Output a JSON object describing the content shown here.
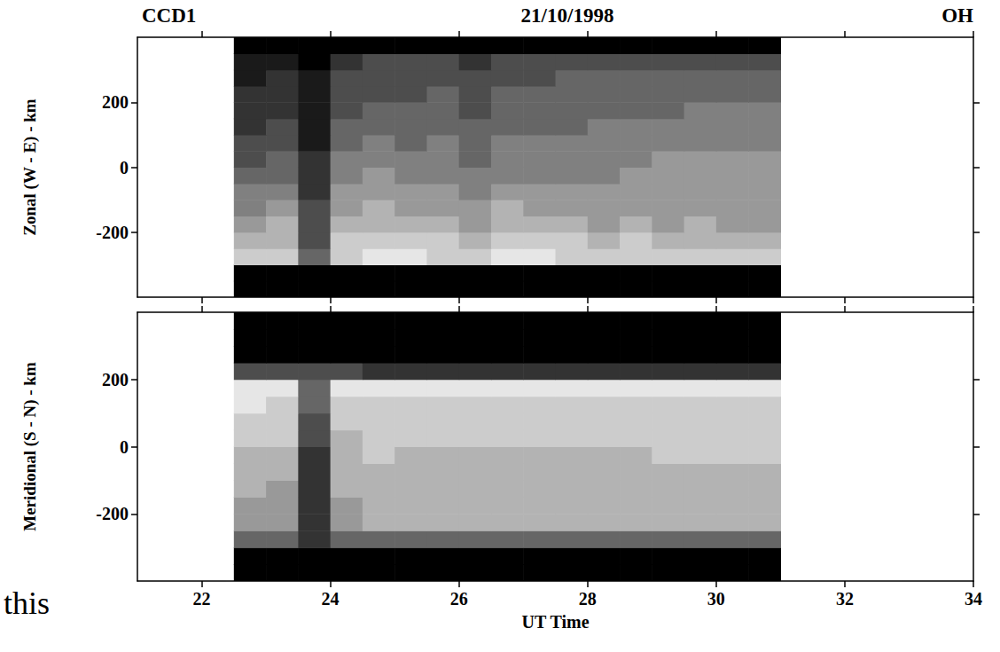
{
  "header": {
    "left": "CCD1",
    "center": "21/10/1998",
    "right": "OH"
  },
  "annotations": [
    "this"
  ],
  "chart_data": [
    {
      "type": "heatmap",
      "y_label": "Zonal (W - E) - km",
      "tick_labels": "y",
      "xlim": [
        21,
        34
      ],
      "xticks": [
        22,
        24,
        26,
        28,
        30,
        32,
        34
      ],
      "ylim": [
        -400,
        400
      ],
      "yticks": [
        -200,
        0,
        200
      ],
      "cell_range": [
        0,
        10
      ],
      "x": [
        22.75,
        23.25,
        23.75,
        24.25,
        24.75,
        25.25,
        25.75,
        26.25,
        26.75,
        27.25,
        27.75,
        28.25,
        28.75,
        29.25,
        29.75,
        30.25,
        30.75
      ],
      "y": [
        -375,
        -325,
        -275,
        -225,
        -175,
        -125,
        -75,
        -25,
        25,
        75,
        125,
        175,
        225,
        275,
        325,
        375
      ],
      "cells": [
        [
          0,
          0,
          0,
          0,
          0,
          0,
          0,
          0,
          0,
          0,
          0,
          0,
          0,
          0,
          0,
          0,
          0
        ],
        [
          0,
          0,
          0,
          0,
          0,
          0,
          0,
          0,
          0,
          0,
          0,
          0,
          0,
          0,
          0,
          0,
          0
        ],
        [
          8,
          8,
          4,
          8,
          9,
          9,
          8,
          8,
          9,
          9,
          8,
          8,
          8,
          8,
          8,
          8,
          8
        ],
        [
          7,
          7,
          3,
          8,
          8,
          8,
          8,
          7,
          8,
          8,
          8,
          7,
          8,
          7,
          7,
          7,
          7
        ],
        [
          6,
          7,
          3,
          7,
          7,
          7,
          7,
          6,
          7,
          7,
          7,
          6,
          7,
          6,
          7,
          6,
          6
        ],
        [
          5,
          6,
          3,
          6,
          7,
          6,
          6,
          6,
          7,
          6,
          6,
          6,
          6,
          6,
          6,
          6,
          6
        ],
        [
          5,
          5,
          2,
          6,
          6,
          6,
          6,
          5,
          6,
          6,
          6,
          6,
          6,
          6,
          6,
          6,
          6
        ],
        [
          4,
          4,
          2,
          5,
          6,
          5,
          5,
          5,
          5,
          5,
          5,
          5,
          6,
          6,
          6,
          6,
          6
        ],
        [
          3,
          4,
          2,
          5,
          5,
          5,
          5,
          4,
          5,
          5,
          5,
          5,
          5,
          6,
          6,
          6,
          6
        ],
        [
          3,
          3,
          1,
          4,
          5,
          4,
          5,
          4,
          5,
          5,
          5,
          5,
          5,
          5,
          5,
          5,
          5
        ],
        [
          2,
          3,
          1,
          4,
          4,
          4,
          4,
          4,
          4,
          4,
          4,
          5,
          5,
          5,
          5,
          5,
          5
        ],
        [
          2,
          2,
          1,
          3,
          4,
          4,
          4,
          3,
          4,
          4,
          4,
          4,
          4,
          4,
          5,
          5,
          5
        ],
        [
          2,
          2,
          1,
          3,
          3,
          3,
          4,
          3,
          4,
          4,
          4,
          4,
          4,
          4,
          4,
          4,
          4
        ],
        [
          1,
          2,
          1,
          3,
          3,
          3,
          3,
          3,
          3,
          3,
          4,
          4,
          4,
          4,
          4,
          4,
          4
        ],
        [
          1,
          1,
          0,
          2,
          3,
          3,
          3,
          2,
          3,
          3,
          3,
          3,
          3,
          3,
          3,
          3,
          3
        ],
        [
          0,
          0,
          0,
          0,
          0,
          0,
          0,
          0,
          0,
          0,
          0,
          0,
          0,
          0,
          0,
          0,
          0
        ]
      ]
    },
    {
      "type": "heatmap",
      "y_label": "Meridional (S - N) - km",
      "x_label": "UT Time",
      "xlim": [
        21,
        34
      ],
      "xticks": [
        22,
        24,
        26,
        28,
        30,
        32,
        34
      ],
      "ylim": [
        -400,
        400
      ],
      "yticks": [
        -200,
        0,
        200
      ],
      "cell_range": [
        0,
        10
      ],
      "x": [
        22.75,
        23.25,
        23.75,
        24.25,
        24.75,
        25.25,
        25.75,
        26.25,
        26.75,
        27.25,
        27.75,
        28.25,
        28.75,
        29.25,
        29.75,
        30.25,
        30.75
      ],
      "y": [
        -375,
        -325,
        -275,
        -225,
        -175,
        -125,
        -75,
        -25,
        25,
        75,
        125,
        175,
        225,
        275,
        325,
        375
      ],
      "cells": [
        [
          0,
          0,
          0,
          0,
          0,
          0,
          0,
          0,
          0,
          0,
          0,
          0,
          0,
          0,
          0,
          0,
          0
        ],
        [
          0,
          0,
          0,
          0,
          0,
          0,
          0,
          0,
          0,
          0,
          0,
          0,
          0,
          0,
          0,
          0,
          0
        ],
        [
          4,
          4,
          2,
          4,
          4,
          4,
          4,
          4,
          4,
          4,
          4,
          4,
          4,
          4,
          4,
          4,
          4
        ],
        [
          6,
          6,
          2,
          6,
          7,
          7,
          7,
          7,
          7,
          7,
          7,
          7,
          7,
          7,
          7,
          7,
          7
        ],
        [
          6,
          6,
          2,
          6,
          7,
          7,
          7,
          7,
          7,
          7,
          7,
          7,
          7,
          7,
          7,
          7,
          7
        ],
        [
          7,
          6,
          2,
          7,
          7,
          7,
          7,
          7,
          7,
          7,
          7,
          7,
          7,
          7,
          7,
          7,
          7
        ],
        [
          7,
          7,
          2,
          7,
          7,
          7,
          7,
          7,
          7,
          7,
          7,
          7,
          7,
          7,
          7,
          7,
          7
        ],
        [
          7,
          7,
          2,
          7,
          8,
          7,
          7,
          7,
          7,
          7,
          7,
          7,
          7,
          8,
          8,
          8,
          8
        ],
        [
          8,
          8,
          3,
          7,
          8,
          8,
          8,
          8,
          8,
          8,
          8,
          8,
          8,
          8,
          8,
          8,
          8
        ],
        [
          8,
          8,
          3,
          8,
          8,
          8,
          8,
          8,
          8,
          8,
          8,
          8,
          8,
          8,
          8,
          8,
          8
        ],
        [
          9,
          8,
          4,
          8,
          8,
          8,
          8,
          8,
          8,
          8,
          8,
          8,
          8,
          8,
          8,
          8,
          8
        ],
        [
          9,
          9,
          4,
          9,
          9,
          9,
          9,
          9,
          9,
          9,
          9,
          9,
          9,
          9,
          9,
          9,
          9
        ],
        [
          3,
          3,
          3,
          3,
          2,
          2,
          2,
          2,
          2,
          2,
          2,
          2,
          2,
          2,
          2,
          2,
          2
        ],
        [
          0,
          0,
          0,
          0,
          0,
          0,
          0,
          0,
          0,
          0,
          0,
          0,
          0,
          0,
          0,
          0,
          0
        ],
        [
          0,
          0,
          0,
          0,
          0,
          0,
          0,
          0,
          0,
          0,
          0,
          0,
          0,
          0,
          0,
          0,
          0
        ],
        [
          0,
          0,
          0,
          0,
          0,
          0,
          0,
          0,
          0,
          0,
          0,
          0,
          0,
          0,
          0,
          0,
          0
        ]
      ]
    }
  ]
}
